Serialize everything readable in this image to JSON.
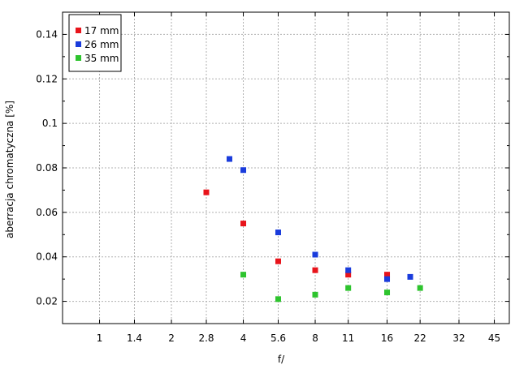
{
  "chart_data": {
    "type": "scatter",
    "xlabel": "f/",
    "ylabel": "aberracja chromatyczna [%]",
    "x_scale": "log2",
    "xlim": [
      0.7,
      52
    ],
    "ylim": [
      0.01,
      0.15
    ],
    "x_ticks": [
      1,
      1.4,
      2,
      2.8,
      4,
      5.6,
      8,
      11,
      16,
      22,
      32,
      45
    ],
    "x_tick_labels": [
      "1",
      "1.4",
      "2",
      "2.8",
      "4",
      "5.6",
      "8",
      "11",
      "16",
      "22",
      "32",
      "45"
    ],
    "y_ticks": [
      0.02,
      0.04,
      0.06,
      0.08,
      0.1,
      0.12,
      0.14
    ],
    "y_tick_labels": [
      "0.02",
      "0.04",
      "0.06",
      "0.08",
      "0.1",
      "0.12",
      "0.14"
    ],
    "grid": true,
    "legend_position": "top-left",
    "series": [
      {
        "name": "17 mm",
        "color": "#e8141b",
        "x": [
          2.8,
          4,
          5.6,
          8,
          11,
          16
        ],
        "y": [
          0.069,
          0.055,
          0.038,
          0.034,
          0.032,
          0.032
        ]
      },
      {
        "name": "26 mm",
        "color": "#1a3cdc",
        "x": [
          3.5,
          4,
          5.6,
          8,
          11,
          16,
          20
        ],
        "y": [
          0.084,
          0.079,
          0.051,
          0.041,
          0.034,
          0.03,
          0.031
        ]
      },
      {
        "name": "35 mm",
        "color": "#2ec42e",
        "x": [
          4,
          5.6,
          8,
          11,
          16,
          22
        ],
        "y": [
          0.032,
          0.021,
          0.023,
          0.026,
          0.024,
          0.026
        ]
      }
    ]
  }
}
